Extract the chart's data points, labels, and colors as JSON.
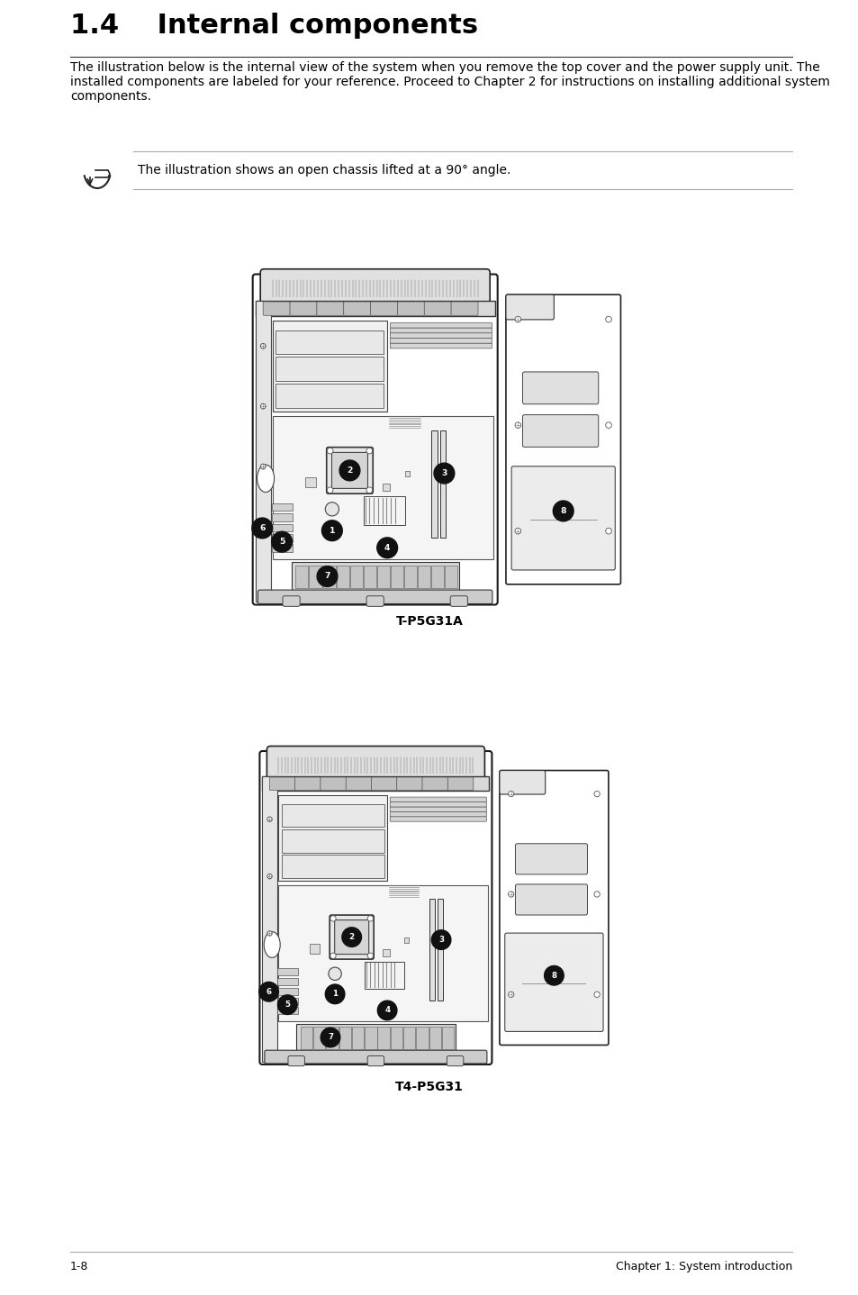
{
  "title": "1.4    Internal components",
  "body_text": "The illustration below is the internal view of the system when you remove the top cover and the power supply unit. The installed components are labeled for your reference. Proceed to Chapter 2 for instructions on installing additional system components.",
  "note_text": "The illustration shows an open chassis lifted at a 90° angle.",
  "diagram1_label": "T-P5G31A",
  "diagram2_label": "T4-P5G31",
  "footer_left": "1-8",
  "footer_right": "Chapter 1: System introduction",
  "bg_color": "#ffffff",
  "text_color": "#000000"
}
